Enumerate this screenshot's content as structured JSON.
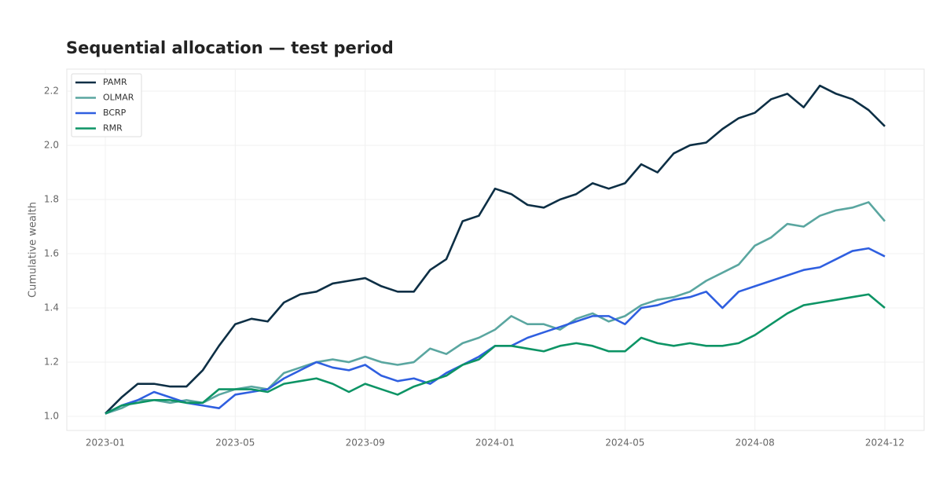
{
  "chart_data": {
    "type": "line",
    "title": "Sequential allocation — test period",
    "y_label": "Cumulative wealth",
    "categories": [
      "2023-01",
      null,
      null,
      null,
      null,
      null,
      null,
      null,
      "2023-05",
      null,
      null,
      null,
      null,
      null,
      null,
      null,
      "2023-09",
      null,
      null,
      null,
      null,
      null,
      null,
      null,
      "2024-01",
      null,
      null,
      null,
      null,
      null,
      null,
      null,
      "2024-05",
      null,
      null,
      null,
      null,
      null,
      null,
      null,
      "2024-08",
      null,
      null,
      null,
      null,
      null,
      null,
      null,
      "2024-12"
    ],
    "series": [
      {
        "name": "PAMR",
        "color": "#0d2f45",
        "values": [
          1.01,
          1.07,
          1.12,
          1.12,
          1.11,
          1.11,
          1.17,
          1.26,
          1.34,
          1.36,
          1.35,
          1.42,
          1.45,
          1.46,
          1.49,
          1.5,
          1.51,
          1.48,
          1.46,
          1.46,
          1.54,
          1.58,
          1.72,
          1.74,
          1.84,
          1.82,
          1.78,
          1.77,
          1.8,
          1.82,
          1.86,
          1.84,
          1.86,
          1.93,
          1.9,
          1.97,
          2.0,
          2.01,
          2.06,
          2.1,
          2.12,
          2.17,
          2.19,
          2.14,
          2.22,
          2.19,
          2.17,
          2.13,
          2.07
        ]
      },
      {
        "name": "OLMAR",
        "color": "#5aa6a0",
        "values": [
          1.01,
          1.03,
          1.06,
          1.06,
          1.05,
          1.06,
          1.05,
          1.08,
          1.1,
          1.11,
          1.1,
          1.16,
          1.18,
          1.2,
          1.21,
          1.2,
          1.22,
          1.2,
          1.19,
          1.2,
          1.25,
          1.23,
          1.27,
          1.29,
          1.32,
          1.37,
          1.34,
          1.34,
          1.32,
          1.36,
          1.38,
          1.35,
          1.37,
          1.41,
          1.43,
          1.44,
          1.46,
          1.5,
          1.53,
          1.56,
          1.63,
          1.66,
          1.71,
          1.7,
          1.74,
          1.76,
          1.77,
          1.79,
          1.72
        ]
      },
      {
        "name": "BCRP",
        "color": "#2f5fe0",
        "values": [
          1.01,
          1.04,
          1.06,
          1.09,
          1.07,
          1.05,
          1.04,
          1.03,
          1.08,
          1.09,
          1.1,
          1.14,
          1.17,
          1.2,
          1.18,
          1.17,
          1.19,
          1.15,
          1.13,
          1.14,
          1.12,
          1.16,
          1.19,
          1.22,
          1.26,
          1.26,
          1.29,
          1.31,
          1.33,
          1.35,
          1.37,
          1.37,
          1.34,
          1.4,
          1.41,
          1.43,
          1.44,
          1.46,
          1.4,
          1.46,
          1.48,
          1.5,
          1.52,
          1.54,
          1.55,
          1.58,
          1.61,
          1.62,
          1.59
        ]
      },
      {
        "name": "RMR",
        "color": "#0d9465",
        "values": [
          1.01,
          1.04,
          1.05,
          1.06,
          1.06,
          1.05,
          1.05,
          1.1,
          1.1,
          1.1,
          1.09,
          1.12,
          1.13,
          1.14,
          1.12,
          1.09,
          1.12,
          1.1,
          1.08,
          1.11,
          1.13,
          1.15,
          1.19,
          1.21,
          1.26,
          1.26,
          1.25,
          1.24,
          1.26,
          1.27,
          1.26,
          1.24,
          1.24,
          1.29,
          1.27,
          1.26,
          1.27,
          1.26,
          1.26,
          1.27,
          1.3,
          1.34,
          1.38,
          1.41,
          1.42,
          1.43,
          1.44,
          1.45,
          1.4
        ]
      }
    ],
    "ylim": [
      0.948,
      2.281
    ],
    "yticks": [
      {
        "value": 1,
        "label": "1.0"
      },
      1.2,
      1.4,
      1.6,
      1.8,
      {
        "value": 2,
        "label": "2.0"
      },
      2.2
    ],
    "grid": true,
    "legend": "upper-left"
  }
}
